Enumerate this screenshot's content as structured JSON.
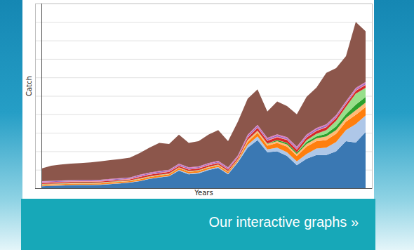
{
  "chart_data": {
    "type": "area",
    "stacked": true,
    "grid": true,
    "tick_labels": false,
    "xlabel": "Years",
    "ylabel": "Catch",
    "categories": [
      null,
      null,
      null,
      null,
      null,
      null,
      null,
      null,
      null,
      null,
      null,
      null,
      null,
      null,
      null,
      null,
      null,
      null,
      null,
      null,
      null,
      null,
      null,
      null,
      null,
      null,
      null,
      null,
      null,
      null,
      null,
      null,
      null,
      null
    ],
    "ylim": [
      0,
      100
    ],
    "yticks": [
      0,
      10,
      20,
      30,
      40,
      50,
      60,
      70,
      80,
      90,
      100
    ],
    "series": [
      {
        "color": "#3a78b3",
        "values": [
          1,
          1.2,
          1.4,
          1.6,
          1.7,
          1.7,
          1.8,
          2.2,
          2.6,
          3,
          3.8,
          5,
          5.8,
          6.5,
          9.5,
          7.5,
          8,
          9.8,
          11,
          7.5,
          14,
          22,
          26,
          19.5,
          20,
          17.5,
          12.5,
          16,
          18,
          18,
          20,
          25.5,
          24.7,
          30.4
        ]
      },
      {
        "color": "#aec7e8",
        "values": [
          0.2,
          0.2,
          0.2,
          0.2,
          0.2,
          0.2,
          0.2,
          0.2,
          0.2,
          0.2,
          0.2,
          0.2,
          0.2,
          0.2,
          0.5,
          0.5,
          0.5,
          0.5,
          0.5,
          0.5,
          0.5,
          1.5,
          2,
          1.5,
          2,
          2,
          2,
          2.5,
          3.5,
          4,
          5,
          6,
          10,
          9
        ]
      },
      {
        "color": "#ff7f0e",
        "values": [
          0.6,
          0.6,
          0.6,
          0.6,
          0.6,
          0.6,
          0.6,
          0.6,
          0.6,
          0.6,
          0.8,
          0.8,
          0.8,
          0.8,
          0.8,
          0.8,
          0.8,
          0.8,
          0.8,
          0.8,
          0.8,
          1.5,
          2,
          2,
          2.5,
          3,
          3,
          4,
          4,
          4,
          4.5,
          4.5,
          5,
          4.5
        ]
      },
      {
        "color": "#ffbb78",
        "values": [
          0.3,
          0.3,
          0.3,
          0.3,
          0.3,
          0.3,
          0.3,
          0.3,
          0.3,
          0.3,
          0.3,
          0.3,
          0.3,
          0.3,
          0.3,
          0.3,
          0.3,
          0.3,
          0.3,
          0.3,
          0.3,
          1,
          1,
          1,
          1,
          1.2,
          1,
          1.5,
          1.5,
          2,
          2,
          2,
          2.5,
          2.5
        ]
      },
      {
        "color": "#2ca02c",
        "values": [
          0.1,
          0.1,
          0.1,
          0.1,
          0.1,
          0.1,
          0.1,
          0.1,
          0.1,
          0.1,
          0.1,
          0.1,
          0.1,
          0.1,
          0.1,
          0.1,
          0.1,
          0.1,
          0.1,
          0.1,
          0.1,
          0.1,
          0.1,
          0.1,
          0.5,
          0.8,
          0.8,
          1,
          1,
          1.5,
          2,
          2,
          3,
          3
        ]
      },
      {
        "color": "#98df8a",
        "values": [
          0.1,
          0.1,
          0.1,
          0.1,
          0.1,
          0.1,
          0.1,
          0.1,
          0.1,
          0.1,
          0.1,
          0.1,
          0.1,
          0.1,
          0.1,
          0.1,
          0.1,
          0.1,
          0.1,
          0.1,
          0.1,
          0.1,
          0.1,
          0.1,
          0.1,
          0.1,
          0.1,
          1,
          1.5,
          2,
          3,
          4,
          6,
          5
        ]
      },
      {
        "color": "#d62728",
        "values": [
          0.5,
          0.5,
          0.5,
          0.5,
          0.5,
          0.5,
          0.5,
          0.5,
          0.5,
          0.5,
          0.8,
          0.8,
          0.8,
          0.8,
          0.8,
          0.8,
          0.8,
          0.8,
          0.8,
          0.8,
          0.8,
          1.2,
          1.5,
          1.5,
          1.5,
          1.5,
          1.5,
          1.5,
          1.5,
          1.5,
          1.5,
          1.5,
          1.5,
          1.5
        ]
      },
      {
        "color": "#ff9896",
        "values": [
          0.3,
          0.3,
          0.3,
          0.3,
          0.3,
          0.3,
          0.3,
          0.3,
          0.3,
          0.3,
          0.3,
          0.3,
          0.3,
          0.3,
          0.3,
          0.3,
          0.3,
          0.3,
          0.3,
          0.3,
          0.3,
          0.3,
          0.3,
          0.3,
          0.3,
          0.3,
          0.3,
          0.3,
          0.3,
          0.3,
          0.3,
          0.3,
          0.3,
          0.3
        ]
      },
      {
        "color": "#9467bd",
        "values": [
          0.4,
          0.4,
          0.4,
          0.4,
          0.4,
          0.4,
          0.4,
          0.4,
          0.4,
          0.4,
          0.5,
          0.5,
          0.5,
          0.5,
          0.5,
          0.5,
          0.5,
          0.5,
          0.5,
          0.5,
          0.5,
          0.7,
          0.7,
          0.7,
          0.7,
          0.7,
          0.7,
          0.7,
          0.7,
          0.7,
          0.7,
          0.7,
          0.7,
          0.7
        ]
      },
      {
        "color": "#e377c2",
        "values": [
          0.3,
          0.3,
          0.3,
          0.3,
          0.3,
          0.3,
          0.3,
          0.3,
          0.3,
          0.3,
          0.4,
          0.4,
          0.4,
          0.4,
          0.4,
          0.4,
          0.4,
          0.4,
          0.4,
          0.4,
          0.4,
          0.6,
          0.6,
          0.6,
          0.6,
          0.6,
          0.6,
          0.6,
          0.6,
          0.6,
          0.6,
          0.6,
          0.6,
          0.6
        ]
      },
      {
        "color": "#8c564b",
        "values": [
          6.8,
          8.2,
          8.6,
          8.9,
          9.1,
          9.5,
          9.9,
          10.2,
          10.4,
          10.7,
          11.7,
          13.5,
          15.2,
          14,
          15.7,
          13.2,
          13.7,
          15.4,
          16.7,
          14.2,
          18.2,
          19.5,
          19.2,
          14.2,
          17.8,
          16.8,
          17.5,
          20.4,
          21.9,
          27.9,
          25.4,
          24.4,
          35.7,
          27.5
        ]
      }
    ]
  },
  "button": {
    "label": "Our interactive graphs »"
  }
}
